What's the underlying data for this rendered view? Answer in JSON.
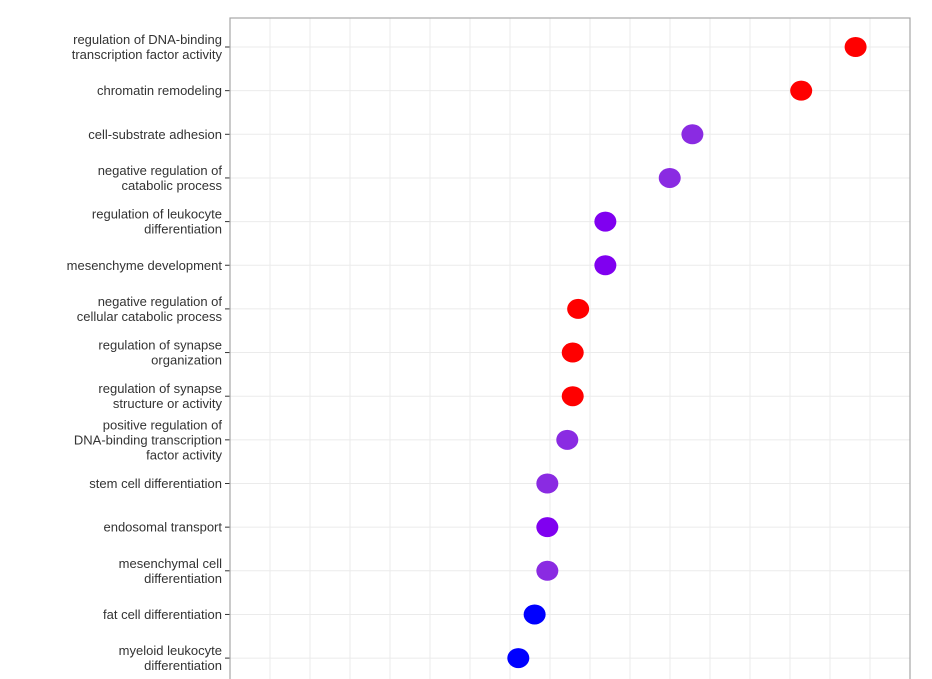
{
  "chart_data": {
    "type": "scatter",
    "categories": [
      [
        "regulation of DNA-binding",
        "transcription factor activity"
      ],
      [
        "chromatin remodeling"
      ],
      [
        "cell-substrate adhesion"
      ],
      [
        "negative regulation of",
        "catabolic process"
      ],
      [
        "regulation of leukocyte",
        "differentiation"
      ],
      [
        "mesenchyme development"
      ],
      [
        "negative regulation of",
        "cellular catabolic process"
      ],
      [
        "regulation of synapse",
        "organization"
      ],
      [
        "regulation of synapse",
        "structure or activity"
      ],
      [
        "positive regulation of",
        "DNA-binding transcription",
        "factor activity"
      ],
      [
        "stem cell differentiation"
      ],
      [
        "endosomal transport"
      ],
      [
        "mesenchymal cell",
        "differentiation"
      ],
      [
        "fat cell differentiation"
      ],
      [
        "myeloid leukocyte",
        "differentiation"
      ]
    ],
    "values": [
      0.94,
      0.88,
      0.76,
      0.735,
      0.664,
      0.664,
      0.634,
      0.628,
      0.628,
      0.622,
      0.6,
      0.6,
      0.6,
      0.586,
      0.568
    ],
    "point_colors": [
      "#ff0000",
      "#ff0000",
      "#8a2be2",
      "#8a2be2",
      "#8000f0",
      "#8000f0",
      "#ff0000",
      "#ff0000",
      "#ff0000",
      "#8a2be2",
      "#8a2be2",
      "#8000f0",
      "#8a2be2",
      "#0000ff",
      "#0000ff"
    ],
    "xlim": [
      0.25,
      1.0
    ],
    "grid": true,
    "legend": "none",
    "title": "",
    "xlabel": "",
    "ylabel": ""
  }
}
